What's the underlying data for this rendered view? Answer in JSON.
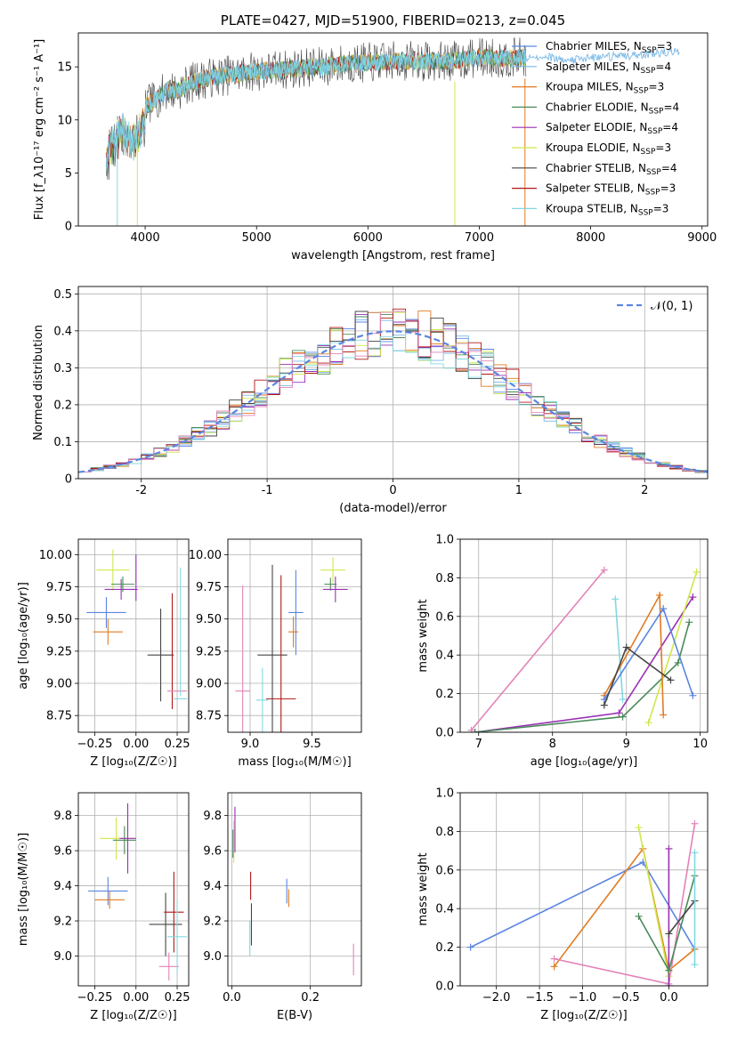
{
  "colors": {
    "Chabrier MILES": "#5b86e0",
    "Salpeter MILES": "#7ab8e6",
    "Kroupa MILES": "#e07b22",
    "Chabrier ELODIE": "#4a8a5a",
    "Salpeter ELODIE": "#9a30b4",
    "Kroupa ELODIE": "#cfe84a",
    "Chabrier STELIB": "#454545",
    "Salpeter STELIB": "#b01818",
    "Kroupa STELIB": "#80d8e0",
    "pink": "#e383b8",
    "grid": "#b0b0b0",
    "normal": "#5b86e0"
  },
  "chart_data": [
    {
      "id": "spectrum",
      "type": "line",
      "title": "PLATE=0427, MJD=51900, FIBERID=0213, z=0.045",
      "xlabel": "wavelength [Angstrom, rest frame]",
      "ylabel": "Flux [f_λ10⁻¹⁷ erg cm⁻² s⁻¹ A⁻¹]",
      "xlim": [
        3400,
        9050
      ],
      "ylim": [
        0,
        18.2
      ],
      "xticks": [
        4000,
        5000,
        6000,
        7000,
        8000,
        9000
      ],
      "yticks": [
        0,
        5,
        10,
        15
      ],
      "grid": false,
      "legend_position": "right",
      "legend": [
        {
          "label": "Chabrier MILES, N",
          "sub": "SSP",
          "suffix": "=3",
          "color": "Chabrier MILES"
        },
        {
          "label": "Salpeter MILES, N",
          "sub": "SSP",
          "suffix": "=4",
          "color": "Salpeter MILES"
        },
        {
          "label": "Kroupa MILES, N",
          "sub": "SSP",
          "suffix": "=3",
          "color": "Kroupa MILES"
        },
        {
          "label": "Chabrier ELODIE, N",
          "sub": "SSP",
          "suffix": "=4",
          "color": "Chabrier ELODIE"
        },
        {
          "label": "Salpeter ELODIE, N",
          "sub": "SSP",
          "suffix": "=4",
          "color": "Salpeter ELODIE"
        },
        {
          "label": "Kroupa ELODIE, N",
          "sub": "SSP",
          "suffix": "=3",
          "color": "Kroupa ELODIE"
        },
        {
          "label": "Chabrier STELIB, N",
          "sub": "SSP",
          "suffix": "=4",
          "color": "Chabrier STELIB"
        },
        {
          "label": "Salpeter STELIB, N",
          "sub": "SSP",
          "suffix": "=3",
          "color": "Salpeter STELIB"
        },
        {
          "label": "Kroupa STELIB, N",
          "sub": "SSP",
          "suffix": "=3",
          "color": "Kroupa STELIB"
        }
      ],
      "continuum": {
        "x": [
          3650,
          3700,
          3800,
          3900,
          4000,
          4100,
          4200,
          4300,
          4400,
          4600,
          4800,
          5000,
          5200,
          5400,
          5600,
          5800,
          6000,
          6200,
          6400,
          6600,
          6800,
          7000,
          7200,
          7400
        ],
        "y": [
          8.0,
          9.0,
          10.0,
          9.0,
          11.2,
          12.0,
          12.8,
          12.8,
          13.5,
          14.0,
          14.3,
          14.6,
          14.7,
          14.9,
          15.0,
          15.3,
          15.4,
          15.5,
          15.6,
          15.5,
          15.6,
          15.9,
          15.8,
          15.9
        ]
      },
      "model_end_x": 7420,
      "model_extension": {
        "x": [
          7420,
          7600,
          7800,
          8000,
          8200,
          8400,
          8600,
          8800
        ],
        "y": [
          15.8,
          16.0,
          15.6,
          15.9,
          16.0,
          16.1,
          16.3,
          16.5
        ]
      },
      "dropouts_x": [
        3750,
        3930,
        6780,
        7410
      ],
      "noise_amplitude": 1.2
    },
    {
      "id": "residuals",
      "type": "step",
      "xlabel": "(data-model)/error",
      "ylabel": "Normed distribution",
      "xlim": [
        -2.5,
        2.5
      ],
      "ylim": [
        0,
        0.52
      ],
      "xticks": [
        -2,
        -1,
        0,
        1,
        2
      ],
      "yticks": [
        0.0,
        0.1,
        0.2,
        0.3,
        0.4,
        0.5
      ],
      "grid": true,
      "legend_position": "top-right",
      "normal_label": "𝒩(0, 1)",
      "bin_width": 0.1,
      "series": [
        {
          "color": "Chabrier MILES",
          "seed": 11
        },
        {
          "color": "Salpeter MILES",
          "seed": 23
        },
        {
          "color": "Kroupa MILES",
          "seed": 37
        },
        {
          "color": "Chabrier ELODIE",
          "seed": 41
        },
        {
          "color": "Salpeter ELODIE",
          "seed": 53
        },
        {
          "color": "Kroupa ELODIE",
          "seed": 67
        },
        {
          "color": "Chabrier STELIB",
          "seed": 71
        },
        {
          "color": "Salpeter STELIB",
          "seed": 83
        },
        {
          "color": "Kroupa STELIB",
          "seed": 97
        },
        {
          "color": "pink",
          "seed": 101
        }
      ]
    },
    {
      "id": "age-vs-Z",
      "type": "scatter",
      "xlabel": "Z [log₁₀(Z/Z☉)]",
      "ylabel": "age  [log₁₀(age/yr)]",
      "xlim": [
        -0.35,
        0.32
      ],
      "ylim": [
        8.62,
        10.12
      ],
      "xticks": [
        -0.25,
        0.0,
        0.25
      ],
      "xticklabels": [
        "−0.25",
        "0.00",
        "0.25"
      ],
      "yticks": [
        8.75,
        9.0,
        9.25,
        9.5,
        9.75,
        10.0
      ],
      "yticklabels": [
        "8.75",
        "9.00",
        "9.25",
        "9.50",
        "9.75",
        "10.00"
      ],
      "grid": true,
      "points": [
        {
          "color": "Chabrier MILES",
          "x": -0.18,
          "y": 9.55,
          "xerr": 0.12,
          "yerr": 0.12
        },
        {
          "color": "Kroupa MILES",
          "x": -0.17,
          "y": 9.4,
          "xerr": 0.09,
          "yerr": 0.1
        },
        {
          "color": "Kroupa ELODIE",
          "x": -0.14,
          "y": 9.88,
          "xerr": 0.1,
          "yerr": 0.16
        },
        {
          "color": "Salpeter ELODIE",
          "x": -0.09,
          "y": 9.73,
          "xerr": 0.1,
          "yerr": 0.08
        },
        {
          "color": "Chabrier ELODIE",
          "x": -0.08,
          "y": 9.77,
          "xerr": 0.07,
          "yerr": 0.06
        },
        {
          "color": "Salpeter ELODIE",
          "x": 0.0,
          "y": 9.82,
          "xerr": 0.0,
          "yerr": 0.18
        },
        {
          "color": "Chabrier STELIB",
          "x": 0.15,
          "y": 9.22,
          "xerr": 0.08,
          "yerr": 0.36
        },
        {
          "color": "Salpeter STELIB",
          "x": 0.22,
          "y": 9.25,
          "xerr": 0.0,
          "yerr": 0.45
        },
        {
          "color": "pink",
          "x": 0.25,
          "y": 8.94,
          "xerr": 0.06,
          "yerr": 0.0
        },
        {
          "color": "Kroupa STELIB",
          "x": 0.27,
          "y": 8.88,
          "xerr": 0.04,
          "yerr": 0.0
        },
        {
          "color": "Kroupa STELIB",
          "x": 0.27,
          "y": 9.4,
          "xerr": 0.0,
          "yerr": 0.5
        }
      ]
    },
    {
      "id": "age-vs-mass",
      "type": "scatter",
      "xlabel": "mass [log₁₀(M/M☉)]",
      "ylabel": "",
      "xlim": [
        8.82,
        9.9
      ],
      "ylim": [
        8.62,
        10.12
      ],
      "xticks": [
        9.0,
        9.5
      ],
      "xticklabels": [
        "9.0",
        "9.5"
      ],
      "yticks": [
        8.75,
        9.0,
        9.25,
        9.5,
        9.75,
        10.0
      ],
      "yticklabels": [
        "8.75",
        "9.00",
        "9.25",
        "9.50",
        "9.75",
        "10.00"
      ],
      "grid": true,
      "points": [
        {
          "color": "pink",
          "x": 8.94,
          "y": 8.94,
          "xerr": 0.06,
          "yerr": 0.82
        },
        {
          "color": "Kroupa STELIB",
          "x": 9.1,
          "y": 8.87,
          "xerr": 0.05,
          "yerr": 0.25
        },
        {
          "color": "Chabrier STELIB",
          "x": 9.18,
          "y": 9.22,
          "xerr": 0.12,
          "yerr": 0.7
        },
        {
          "color": "Salpeter STELIB",
          "x": 9.25,
          "y": 8.88,
          "xerr": 0.12,
          "yerr": 0.96
        },
        {
          "color": "Chabrier MILES",
          "x": 9.37,
          "y": 9.55,
          "xerr": 0.06,
          "yerr": 0.33
        },
        {
          "color": "Kroupa MILES",
          "x": 9.35,
          "y": 9.4,
          "xerr": 0.04,
          "yerr": 0.12
        },
        {
          "color": "Chabrier ELODIE",
          "x": 9.65,
          "y": 9.77,
          "xerr": 0.05,
          "yerr": 0.05
        },
        {
          "color": "Kroupa ELODIE",
          "x": 9.67,
          "y": 9.88,
          "xerr": 0.1,
          "yerr": 0.1
        },
        {
          "color": "Salpeter ELODIE",
          "x": 9.69,
          "y": 9.73,
          "xerr": 0.1,
          "yerr": 0.1
        }
      ]
    },
    {
      "id": "mass-weight-vs-age",
      "type": "line",
      "xlabel": "age  [log₁₀(age/yr)]",
      "ylabel": "mass weight",
      "xlim": [
        6.75,
        10.1
      ],
      "ylim": [
        0,
        1.0
      ],
      "xticks": [
        7,
        8,
        9,
        10
      ],
      "xticklabels": [
        "7",
        "8",
        "9",
        "10"
      ],
      "yticks": [
        0.0,
        0.2,
        0.4,
        0.6,
        0.8,
        1.0
      ],
      "yticklabels": [
        "0.0",
        "0.2",
        "0.4",
        "0.6",
        "0.8",
        "1.0"
      ],
      "grid": true,
      "series": [
        {
          "color": "pink",
          "x": [
            6.9,
            8.7
          ],
          "y": [
            0.01,
            0.84
          ]
        },
        {
          "color": "Kroupa STELIB",
          "x": [
            8.85,
            8.95
          ],
          "y": [
            0.69,
            0.17
          ]
        },
        {
          "color": "Salpeter ELODIE",
          "x": [
            6.95,
            8.9,
            9.9
          ],
          "y": [
            0.0,
            0.1,
            0.7
          ]
        },
        {
          "color": "Chabrier ELODIE",
          "x": [
            6.95,
            8.95,
            9.7,
            9.85
          ],
          "y": [
            0.0,
            0.08,
            0.36,
            0.57
          ]
        },
        {
          "color": "Kroupa ELODIE",
          "x": [
            9.3,
            9.95
          ],
          "y": [
            0.05,
            0.83
          ]
        },
        {
          "color": "Kroupa MILES",
          "x": [
            8.7,
            9.45,
            9.5
          ],
          "y": [
            0.19,
            0.71,
            0.09
          ]
        },
        {
          "color": "Chabrier MILES",
          "x": [
            8.7,
            9.5,
            9.9
          ],
          "y": [
            0.17,
            0.64,
            0.19
          ]
        },
        {
          "color": "Chabrier STELIB",
          "x": [
            8.7,
            9.0,
            9.6
          ],
          "y": [
            0.14,
            0.44,
            0.27
          ]
        }
      ]
    },
    {
      "id": "mass-vs-Z",
      "type": "scatter",
      "xlabel": "Z [log₁₀(Z/Z☉)]",
      "ylabel": "mass [log₁₀(M/M☉)]",
      "xlim": [
        -0.35,
        0.32
      ],
      "ylim": [
        8.83,
        9.93
      ],
      "xticks": [
        -0.25,
        0.0,
        0.25
      ],
      "xticklabels": [
        "−0.25",
        "0.00",
        "0.25"
      ],
      "yticks": [
        9.0,
        9.2,
        9.4,
        9.6,
        9.8
      ],
      "yticklabels": [
        "9.0",
        "9.2",
        "9.4",
        "9.6",
        "9.8"
      ],
      "grid": true,
      "points": [
        {
          "color": "Chabrier MILES",
          "x": -0.17,
          "y": 9.37,
          "xerr": 0.12,
          "yerr": 0.08
        },
        {
          "color": "Kroupa MILES",
          "x": -0.16,
          "y": 9.32,
          "xerr": 0.09,
          "yerr": 0.05
        },
        {
          "color": "Kroupa ELODIE",
          "x": -0.12,
          "y": 9.67,
          "xerr": 0.1,
          "yerr": 0.12
        },
        {
          "color": "Chabrier ELODIE",
          "x": -0.07,
          "y": 9.66,
          "xerr": 0.07,
          "yerr": 0.08
        },
        {
          "color": "Salpeter ELODIE",
          "x": -0.05,
          "y": 9.67,
          "xerr": 0.05,
          "yerr": 0.2
        },
        {
          "color": "Chabrier STELIB",
          "x": 0.18,
          "y": 9.18,
          "xerr": 0.1,
          "yerr": 0.18
        },
        {
          "color": "Salpeter STELIB",
          "x": 0.23,
          "y": 9.25,
          "xerr": 0.06,
          "yerr": 0.23
        },
        {
          "color": "pink",
          "x": 0.2,
          "y": 8.94,
          "xerr": 0.06,
          "yerr": 0.08
        },
        {
          "color": "Kroupa STELIB",
          "x": 0.25,
          "y": 9.11,
          "xerr": 0.06,
          "yerr": 0.21
        }
      ]
    },
    {
      "id": "mass-vs-EBV",
      "type": "scatter",
      "xlabel": "E(B-V)",
      "ylabel": "",
      "xlim": [
        -0.01,
        0.33
      ],
      "ylim": [
        8.83,
        9.93
      ],
      "xticks": [
        0.0,
        0.2
      ],
      "xticklabels": [
        "0.0",
        "0.2"
      ],
      "yticks": [
        9.0,
        9.2,
        9.4,
        9.6,
        9.8
      ],
      "yticklabels": [
        "9.0",
        "9.2",
        "9.4",
        "9.6",
        "9.8"
      ],
      "grid": true,
      "points": [
        {
          "color": "Kroupa ELODIE",
          "x": 0.005,
          "y": 9.65,
          "xerr": 0.0,
          "yerr": 0.12
        },
        {
          "color": "Salpeter ELODIE",
          "x": 0.008,
          "y": 9.72,
          "xerr": 0.0,
          "yerr": 0.13
        },
        {
          "color": "Chabrier ELODIE",
          "x": 0.003,
          "y": 9.64,
          "xerr": 0.0,
          "yerr": 0.08
        },
        {
          "color": "Salpeter STELIB",
          "x": 0.048,
          "y": 9.4,
          "xerr": 0.0,
          "yerr": 0.08
        },
        {
          "color": "Chabrier STELIB",
          "x": 0.05,
          "y": 9.18,
          "xerr": 0.0,
          "yerr": 0.12
        },
        {
          "color": "Kroupa STELIB",
          "x": 0.046,
          "y": 9.1,
          "xerr": 0.0,
          "yerr": 0.1
        },
        {
          "color": "Chabrier MILES",
          "x": 0.14,
          "y": 9.37,
          "xerr": 0.0,
          "yerr": 0.07
        },
        {
          "color": "Kroupa MILES",
          "x": 0.145,
          "y": 9.33,
          "xerr": 0.0,
          "yerr": 0.05
        },
        {
          "color": "pink",
          "x": 0.31,
          "y": 8.98,
          "xerr": 0.0,
          "yerr": 0.09
        }
      ]
    },
    {
      "id": "mass-weight-vs-Z",
      "type": "line",
      "xlabel": "Z [log₁₀(Z/Z☉)]",
      "ylabel": "mass weight",
      "xlim": [
        -2.42,
        0.45
      ],
      "ylim": [
        0,
        1.0
      ],
      "xticks": [
        -2.0,
        -1.5,
        -1.0,
        -0.5,
        0.0
      ],
      "xticklabels": [
        "−2.0",
        "−1.5",
        "−1.0",
        "−0.5",
        "0.0"
      ],
      "yticks": [
        0.0,
        0.2,
        0.4,
        0.6,
        0.8,
        1.0
      ],
      "yticklabels": [
        "0.0",
        "0.2",
        "0.4",
        "0.6",
        "0.8",
        "1.0"
      ],
      "grid": true,
      "series": [
        {
          "color": "Chabrier MILES",
          "x": [
            -2.3,
            -0.3,
            0.3
          ],
          "y": [
            0.2,
            0.64,
            0.19
          ]
        },
        {
          "color": "Kroupa MILES",
          "x": [
            -1.33,
            -0.3,
            0.0,
            0.3
          ],
          "y": [
            0.1,
            0.71,
            0.08,
            0.19
          ]
        },
        {
          "color": "pink",
          "x": [
            -1.33,
            0.0,
            0.3
          ],
          "y": [
            0.14,
            0.01,
            0.84
          ]
        },
        {
          "color": "Kroupa ELODIE",
          "x": [
            -0.35,
            0.0
          ],
          "y": [
            0.82,
            0.05
          ]
        },
        {
          "color": "Salpeter ELODIE",
          "x": [
            0.0,
            0.0
          ],
          "y": [
            0.71,
            0.0
          ]
        },
        {
          "color": "Chabrier ELODIE",
          "x": [
            -0.35,
            0.0,
            0.3
          ],
          "y": [
            0.36,
            0.08,
            0.57
          ]
        },
        {
          "color": "Chabrier STELIB",
          "x": [
            0.0,
            0.3
          ],
          "y": [
            0.27,
            0.44
          ]
        },
        {
          "color": "Kroupa STELIB",
          "x": [
            0.3,
            0.3
          ],
          "y": [
            0.69,
            0.11
          ]
        }
      ]
    }
  ]
}
